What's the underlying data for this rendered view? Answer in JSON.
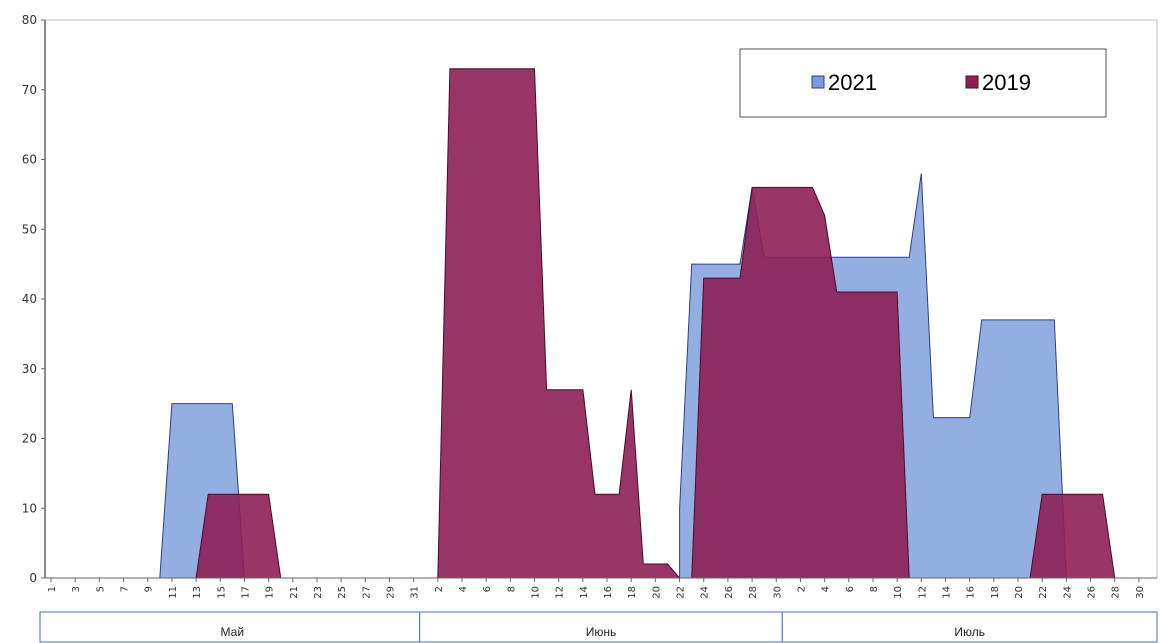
{
  "chart_data": {
    "type": "area",
    "y_ticks": [
      0,
      10,
      20,
      30,
      40,
      50,
      60,
      70,
      80
    ],
    "ylim": [
      0,
      80
    ],
    "grid": false,
    "legend_position": "top-right",
    "months": [
      {
        "name": "Май",
        "days": 31
      },
      {
        "name": "Июнь",
        "days": 30
      },
      {
        "name": "Июль",
        "days": 31
      }
    ],
    "x_ticks": [
      {
        "label": "1"
      },
      {
        "label": "3"
      },
      {
        "label": "5"
      },
      {
        "label": "7"
      },
      {
        "label": "9"
      },
      {
        "label": "11"
      },
      {
        "label": "13"
      },
      {
        "label": "15"
      },
      {
        "label": "17"
      },
      {
        "label": "19"
      },
      {
        "label": "21"
      },
      {
        "label": "23"
      },
      {
        "label": "25"
      },
      {
        "label": "27"
      },
      {
        "label": "29"
      },
      {
        "label": "31"
      },
      {
        "label": "2"
      },
      {
        "label": "4"
      },
      {
        "label": "6"
      },
      {
        "label": "8"
      },
      {
        "label": "10"
      },
      {
        "label": "12"
      },
      {
        "label": "14"
      },
      {
        "label": "16"
      },
      {
        "label": "18"
      },
      {
        "label": "20"
      },
      {
        "label": "22"
      },
      {
        "label": "24"
      },
      {
        "label": "26"
      },
      {
        "label": "28"
      },
      {
        "label": "30"
      },
      {
        "label": "2"
      },
      {
        "label": "4"
      },
      {
        "label": "6"
      },
      {
        "label": "8"
      },
      {
        "label": "10"
      },
      {
        "label": "12"
      },
      {
        "label": "14"
      },
      {
        "label": "16"
      },
      {
        "label": "18"
      },
      {
        "label": "20"
      },
      {
        "label": "22"
      },
      {
        "label": "24"
      },
      {
        "label": "26"
      },
      {
        "label": "28"
      },
      {
        "label": "30"
      }
    ],
    "series": [
      {
        "name": "2021",
        "color": "#7B9CDA",
        "fill_opacity": 0.82,
        "stroke": "#2E3F8F",
        "points": [
          [
            1,
            0
          ],
          [
            10,
            0
          ],
          [
            11,
            25
          ],
          [
            16,
            25
          ],
          [
            17,
            0
          ],
          [
            53,
            0
          ],
          [
            53,
            10
          ],
          [
            54,
            45
          ],
          [
            58,
            45
          ],
          [
            59,
            56
          ],
          [
            60,
            46
          ],
          [
            72,
            46
          ],
          [
            73,
            58
          ],
          [
            74,
            23
          ],
          [
            77,
            23
          ],
          [
            78,
            37
          ],
          [
            84,
            37
          ],
          [
            85,
            0
          ],
          [
            92,
            0
          ]
        ]
      },
      {
        "name": "2019",
        "color": "#8E1F55",
        "fill_opacity": 0.9,
        "stroke": "#4A0D2A",
        "points": [
          [
            1,
            0
          ],
          [
            13,
            0
          ],
          [
            14,
            12
          ],
          [
            19,
            12
          ],
          [
            20,
            0
          ],
          [
            33,
            0
          ],
          [
            34,
            73
          ],
          [
            41,
            73
          ],
          [
            42,
            27
          ],
          [
            45,
            27
          ],
          [
            46,
            12
          ],
          [
            48,
            12
          ],
          [
            49,
            27
          ],
          [
            50,
            2
          ],
          [
            52,
            2
          ],
          [
            53,
            0
          ],
          [
            54,
            0
          ],
          [
            55,
            43
          ],
          [
            58,
            43
          ],
          [
            59,
            56
          ],
          [
            64,
            56
          ],
          [
            65,
            52
          ],
          [
            66,
            41
          ],
          [
            71,
            41
          ],
          [
            72,
            0
          ],
          [
            82,
            0
          ],
          [
            83,
            12
          ],
          [
            88,
            12
          ],
          [
            89,
            0
          ],
          [
            92,
            0
          ]
        ]
      }
    ]
  }
}
